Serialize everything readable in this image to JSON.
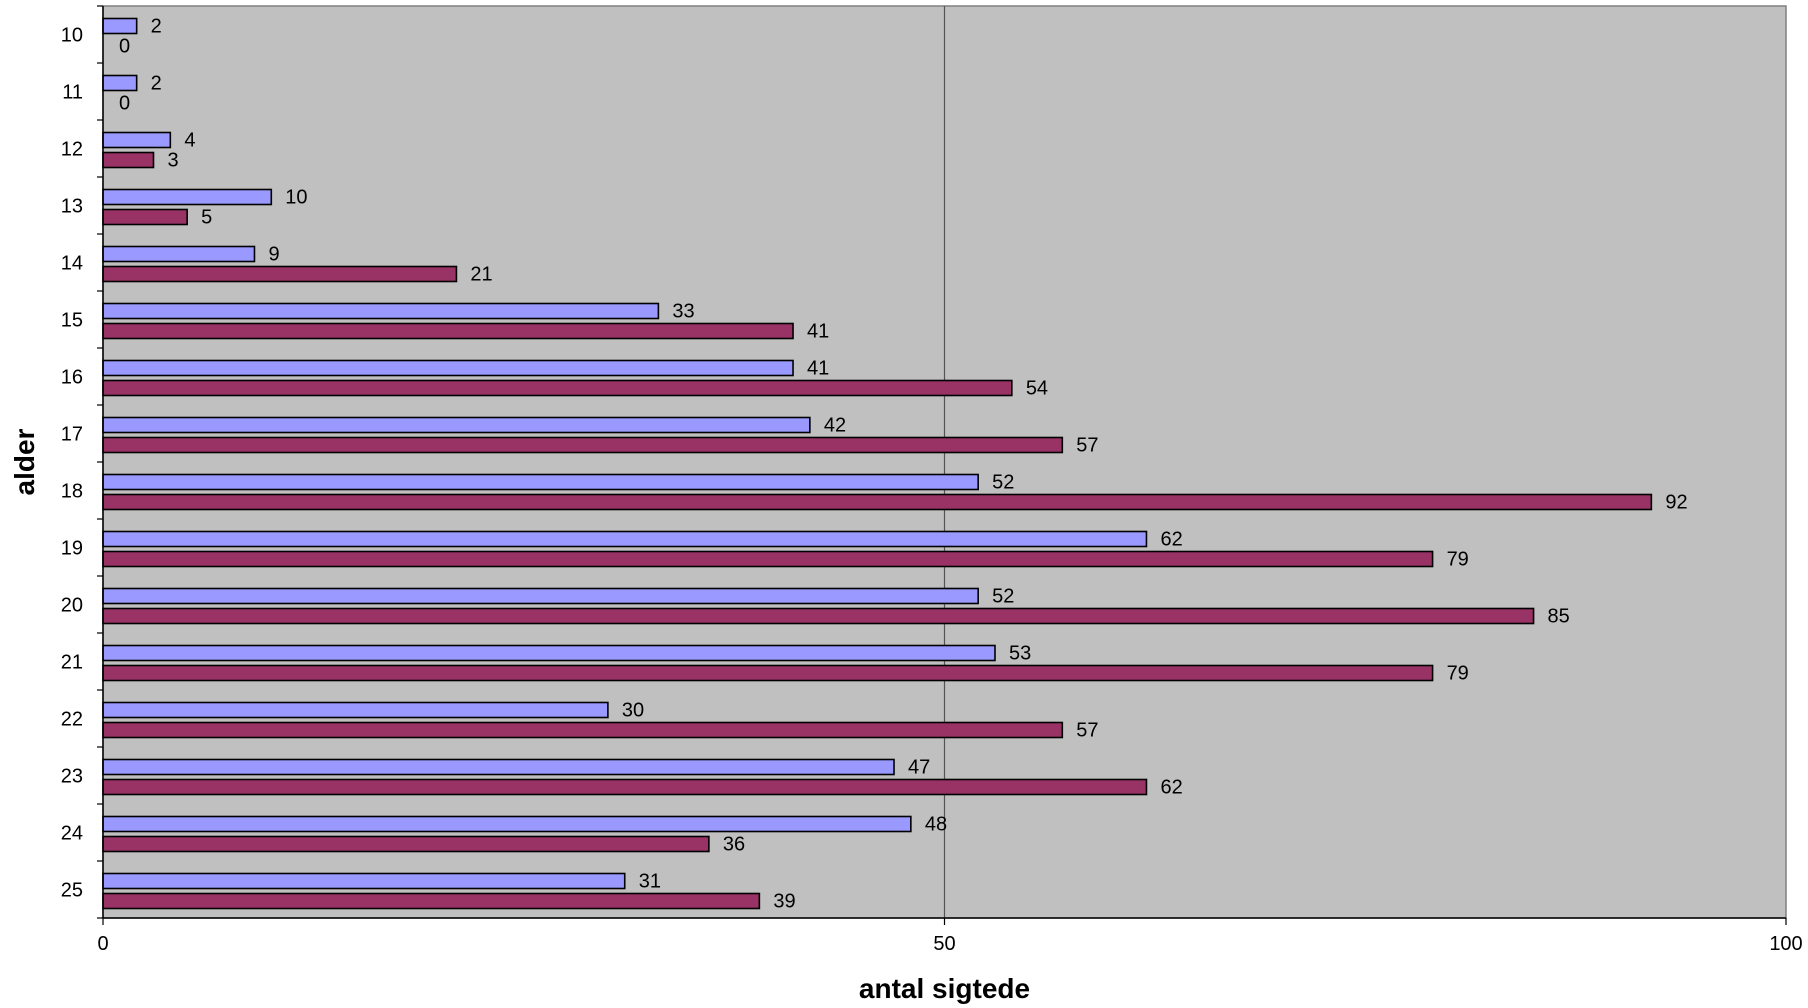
{
  "chart_data": {
    "type": "bar",
    "orientation": "horizontal",
    "categories": [
      "10",
      "11",
      "12",
      "13",
      "14",
      "15",
      "16",
      "17",
      "18",
      "19",
      "20",
      "21",
      "22",
      "23",
      "24",
      "25"
    ],
    "series": [
      {
        "values": [
          2,
          2,
          4,
          10,
          9,
          33,
          41,
          42,
          52,
          62,
          52,
          53,
          30,
          47,
          48,
          31
        ],
        "color": "#9999ff"
      },
      {
        "values": [
          0,
          0,
          3,
          5,
          21,
          41,
          54,
          57,
          92,
          79,
          85,
          79,
          57,
          62,
          36,
          39
        ],
        "color": "#993366"
      }
    ],
    "xlabel": "antal sigtede",
    "ylabel": "alder",
    "xlim": [
      0,
      100
    ],
    "xticks": [
      "0",
      "50",
      "100"
    ],
    "grid": "vertical major gridlines",
    "legend": "none",
    "plot_background": "#c0c0c0",
    "data_labels": true
  }
}
